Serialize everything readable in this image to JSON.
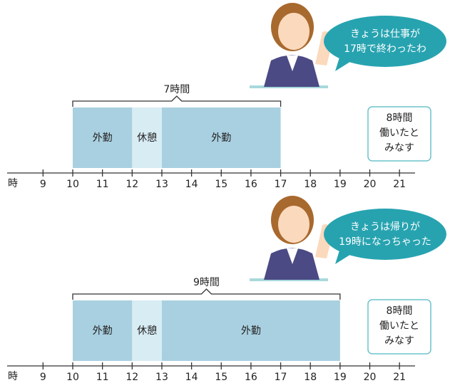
{
  "axis": {
    "unit_label": "時",
    "ticks": [
      9,
      10,
      11,
      12,
      13,
      14,
      15,
      16,
      17,
      18,
      19,
      20,
      21
    ]
  },
  "panels": [
    {
      "bubble": [
        "きょうは仕事が",
        "17時で終わったわ"
      ],
      "bracket": {
        "label": "7時間"
      },
      "segments": [
        {
          "label": "外勤",
          "start": 10,
          "end": 12,
          "kind": "work"
        },
        {
          "label": "休憩",
          "start": 12,
          "end": 13,
          "kind": "rest"
        },
        {
          "label": "外勤",
          "start": 13,
          "end": 17,
          "kind": "work"
        }
      ],
      "note": [
        "8時間",
        "働いたと",
        "みなす"
      ]
    },
    {
      "bubble": [
        "きょうは帰りが",
        "19時になっちゃった"
      ],
      "bracket": {
        "label": "9時間"
      },
      "segments": [
        {
          "label": "外勤",
          "start": 10,
          "end": 12,
          "kind": "work"
        },
        {
          "label": "休憩",
          "start": 12,
          "end": 13,
          "kind": "rest"
        },
        {
          "label": "外勤",
          "start": 13,
          "end": 19,
          "kind": "work"
        }
      ],
      "note": [
        "8時間",
        "働いたと",
        "みなす"
      ]
    }
  ]
}
